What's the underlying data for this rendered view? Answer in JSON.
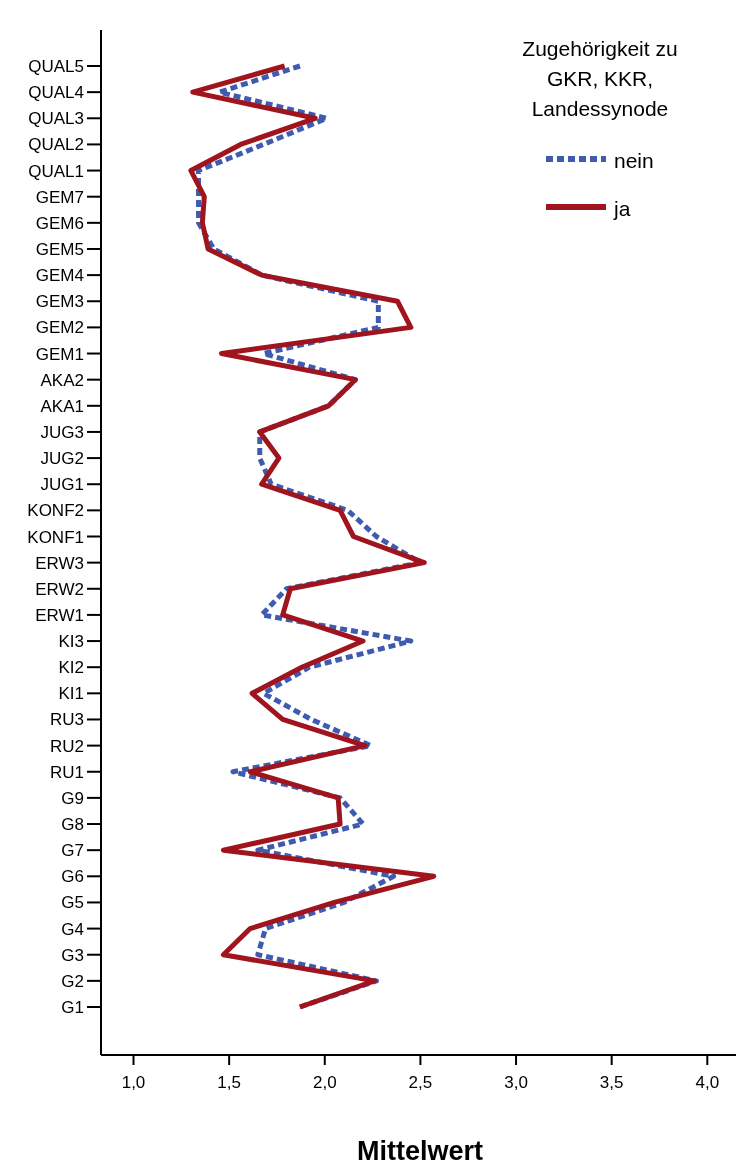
{
  "chart_data": {
    "type": "line",
    "orientation": "horizontal",
    "xlabel": "Mittelwert",
    "legend_title": "Zugehörigkeit zu GKR, KKR, Landessynode",
    "legend": "top right",
    "grid": false,
    "marker": "none",
    "categories": [
      "QUAL5",
      "QUAL4",
      "QUAL3",
      "QUAL2",
      "QUAL1",
      "GEM7",
      "GEM6",
      "GEM5",
      "GEM4",
      "GEM3",
      "GEM2",
      "GEM1",
      "AKA2",
      "AKA1",
      "JUG3",
      "JUG2",
      "JUG1",
      "KONF2",
      "KONF1",
      "ERW3",
      "ERW2",
      "ERW1",
      "KI3",
      "KI2",
      "KI1",
      "RU3",
      "RU2",
      "RU1",
      "G9",
      "G8",
      "G7",
      "G6",
      "G5",
      "G4",
      "G3",
      "G2",
      "G1"
    ],
    "xlim": [
      0.83,
      4.15
    ],
    "xticks": [
      {
        "value": 1,
        "label": "1,0"
      },
      {
        "value": 1.5,
        "label": "1,5"
      },
      {
        "value": 2,
        "label": "2,0"
      },
      {
        "value": 2.5,
        "label": "2,5"
      },
      {
        "value": 3,
        "label": "3,0"
      },
      {
        "value": 3.5,
        "label": "3,5"
      },
      {
        "value": 4,
        "label": "4,0"
      }
    ],
    "series": [
      {
        "name": "nein",
        "color": "#3f5bb0",
        "line_style": "dotted",
        "values": [
          1.87,
          1.45,
          2.01,
          1.68,
          1.34,
          1.34,
          1.34,
          1.42,
          1.67,
          2.28,
          2.28,
          1.68,
          2.16,
          2.02,
          1.66,
          1.66,
          1.72,
          2.12,
          2.27,
          2.5,
          1.8,
          1.67,
          2.45,
          1.92,
          1.68,
          1.93,
          2.24,
          1.52,
          2.08,
          2.2,
          1.65,
          2.36,
          2.1,
          1.69,
          1.65,
          2.27,
          1.87
        ]
      },
      {
        "name": "ja",
        "color": "#a0141e",
        "line_style": "solid",
        "values": [
          1.79,
          1.31,
          1.95,
          1.56,
          1.3,
          1.37,
          1.36,
          1.39,
          1.67,
          2.38,
          2.45,
          1.46,
          2.16,
          2.02,
          1.66,
          1.76,
          1.67,
          2.08,
          2.15,
          2.52,
          1.82,
          1.78,
          2.2,
          1.88,
          1.62,
          1.78,
          2.21,
          1.61,
          2.07,
          2.08,
          1.47,
          2.57,
          2.05,
          1.61,
          1.47,
          2.26,
          1.87
        ]
      }
    ]
  }
}
